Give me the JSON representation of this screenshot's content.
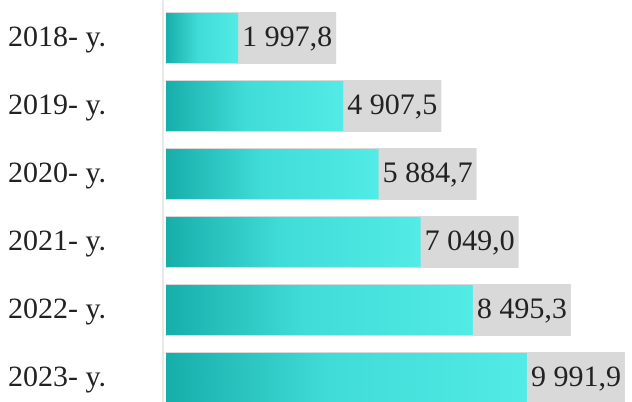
{
  "chart_data": {
    "type": "bar",
    "orientation": "horizontal",
    "categories": [
      "2018- y.",
      "2019- y.",
      "2020- y.",
      "2021- y.",
      "2022- y.",
      "2023- y."
    ],
    "values": [
      1997.8,
      4907.5,
      5884.7,
      7049.0,
      8495.3,
      9991.9
    ],
    "value_labels": [
      "1 997,8",
      "4 907,5",
      "5 884,7",
      "7 049,0",
      "8 495,3",
      "9 991,9"
    ],
    "color": "#4de8e3",
    "xlim": [
      0,
      12900
    ]
  }
}
